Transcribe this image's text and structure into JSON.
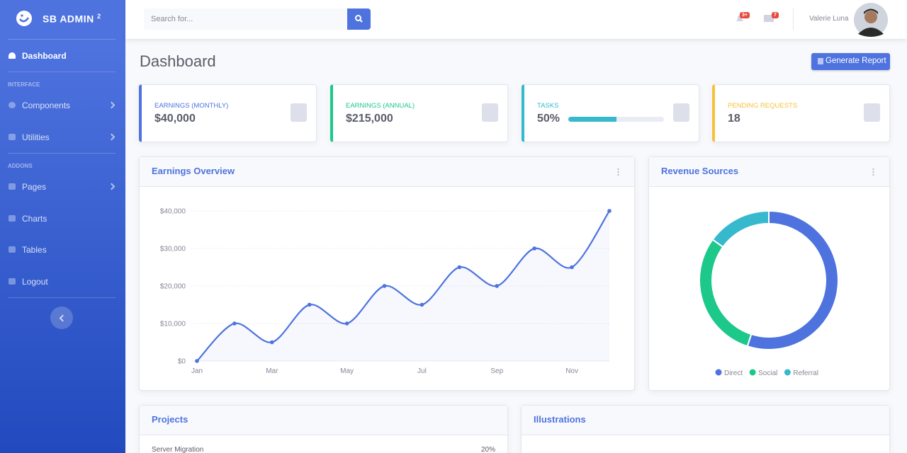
{
  "sidebar": {
    "brand": "SB ADMIN",
    "brand_sup": "2",
    "active": "Dashboard",
    "headings": [
      "INTERFACE",
      "ADDONS"
    ],
    "items": [
      "Components",
      "Utilities",
      "Pages",
      "Charts",
      "Tables",
      "Logout"
    ]
  },
  "topbar": {
    "search_placeholder": "Search for...",
    "alerts_badge": "3+",
    "messages_badge": "7",
    "user_name": "Valerie Luna"
  },
  "page": {
    "title": "Dashboard",
    "button": "Generate Report"
  },
  "cards": [
    {
      "label": "EARNINGS (MONTHLY)",
      "value": "$40,000",
      "color": "#4e73df"
    },
    {
      "label": "EARNINGS (ANNUAL)",
      "value": "$215,000",
      "color": "#1cc88a"
    },
    {
      "label": "TASKS",
      "value": "50%",
      "progress": 50,
      "color": "#36b9cc"
    },
    {
      "label": "PENDING REQUESTS",
      "value": 18,
      "color": "#f6c23e"
    }
  ],
  "chart_data": [
    {
      "type": "line",
      "title": "Earnings Overview",
      "categories": [
        "Jan",
        null,
        "Mar",
        null,
        "May",
        null,
        "Jul",
        null,
        "Sep",
        null,
        "Nov",
        null
      ],
      "values": [
        0,
        10000,
        5000,
        15000,
        10000,
        20000,
        15000,
        25000,
        20000,
        30000,
        25000,
        40000
      ],
      "color": "#4e73df",
      "ylim": [
        0,
        40000
      ],
      "yticks": [
        {
          "value": 0,
          "label": "$0"
        },
        {
          "value": 10000,
          "label": "$10,000"
        },
        {
          "value": 20000,
          "label": "$20,000"
        },
        {
          "value": 30000,
          "label": "$30,000"
        },
        {
          "value": 40000,
          "label": "$40,000"
        }
      ],
      "grid": true
    },
    {
      "type": "doughnut",
      "title": "Revenue Sources",
      "categories": [
        "Direct",
        "Social",
        "Referral"
      ],
      "values": [
        55,
        30,
        15
      ],
      "colors": [
        "#4e73df",
        "#1cc88a",
        "#36b9cc"
      ]
    }
  ],
  "projects": {
    "title": "Projects",
    "rows": [
      {
        "name": "Server Migration",
        "value": "20%"
      }
    ]
  },
  "illustrations": {
    "title": "Illustrations"
  }
}
